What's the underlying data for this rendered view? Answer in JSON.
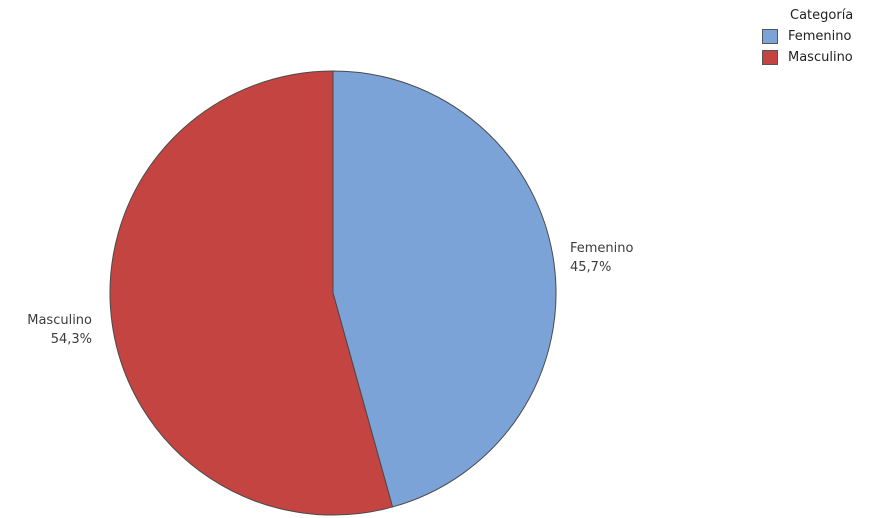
{
  "chart_data": {
    "type": "pie",
    "legend_title": "Categoría",
    "legend_position": "top-right",
    "slices": [
      {
        "label": "Femenino",
        "value": 45.7,
        "value_label": "45,7%",
        "color": "#7ba3d8"
      },
      {
        "label": "Masculino",
        "value": 54.3,
        "value_label": "54,3%",
        "color": "#c44441"
      }
    ]
  }
}
